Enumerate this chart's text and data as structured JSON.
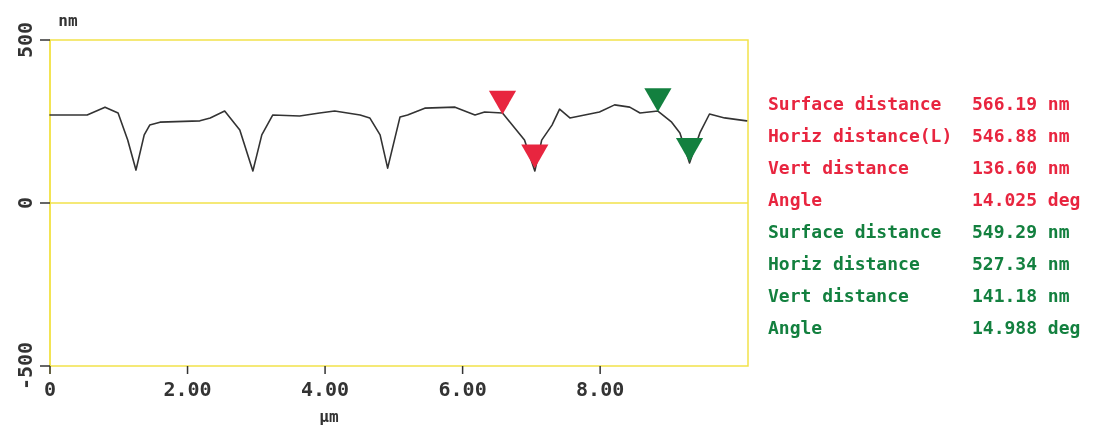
{
  "chart_data": {
    "type": "line",
    "xlabel": "µm",
    "ylabel": "nm",
    "xlim": [
      0,
      10.15
    ],
    "ylim": [
      -500,
      500
    ],
    "xticks": [
      0,
      {
        "value": 2,
        "label": "2.00"
      },
      {
        "value": 4,
        "label": "4.00"
      },
      {
        "value": 6,
        "label": "6.00"
      },
      {
        "value": 8,
        "label": "8.00"
      }
    ],
    "yticks": [
      -500,
      0,
      500
    ],
    "grid": false,
    "marker": "none",
    "line_style": "solid",
    "ref_lines": [
      {
        "axis": "y",
        "value": 0,
        "color": "#f2e24a"
      }
    ],
    "series": [
      {
        "color": "#333333",
        "x": [
          0,
          0.54,
          0.8,
          0.99,
          1.13,
          1.25,
          1.37,
          1.45,
          1.6,
          2.18,
          2.33,
          2.54,
          2.76,
          2.95,
          3.08,
          3.24,
          3.63,
          3.92,
          4.14,
          4.51,
          4.65,
          4.8,
          4.91,
          5.09,
          5.2,
          5.45,
          5.89,
          6.18,
          6.32,
          6.58,
          6.9,
          7.05,
          7.15,
          7.3,
          7.41,
          7.56,
          7.99,
          8.21,
          8.43,
          8.58,
          8.84,
          9.04,
          9.16,
          9.3,
          9.45,
          9.59,
          9.81,
          10.13
        ],
        "values": [
          270,
          270,
          294,
          276,
          193,
          101,
          209,
          239,
          248,
          252,
          261,
          282,
          224,
          98,
          209,
          270,
          267,
          276,
          282,
          270,
          261,
          209,
          107,
          264,
          270,
          291,
          294,
          270,
          279,
          276,
          193,
          98,
          193,
          239,
          288,
          261,
          279,
          301,
          294,
          276,
          282,
          248,
          215,
          123,
          215,
          273,
          261,
          252
        ]
      },
      {
        "type": "scatter",
        "marker": "triangle",
        "color": "#e8253f",
        "x": [
          6.58,
          7.05
        ],
        "values": [
          320,
          155
        ]
      },
      {
        "type": "scatter",
        "marker": "triangle",
        "color": "#13803f",
        "x": [
          8.84,
          9.3
        ],
        "values": [
          328,
          175
        ]
      }
    ],
    "annotations": [
      "Surface distance 566.19 nm",
      "Horiz distance(L) 546.88 nm",
      "Vert distance 136.60 nm",
      "Angle 14.025 deg",
      "Surface distance 549.29 nm",
      "Horiz distance 527.34 nm",
      "Vert distance 141.18 nm",
      "Angle 14.988 deg"
    ]
  }
}
